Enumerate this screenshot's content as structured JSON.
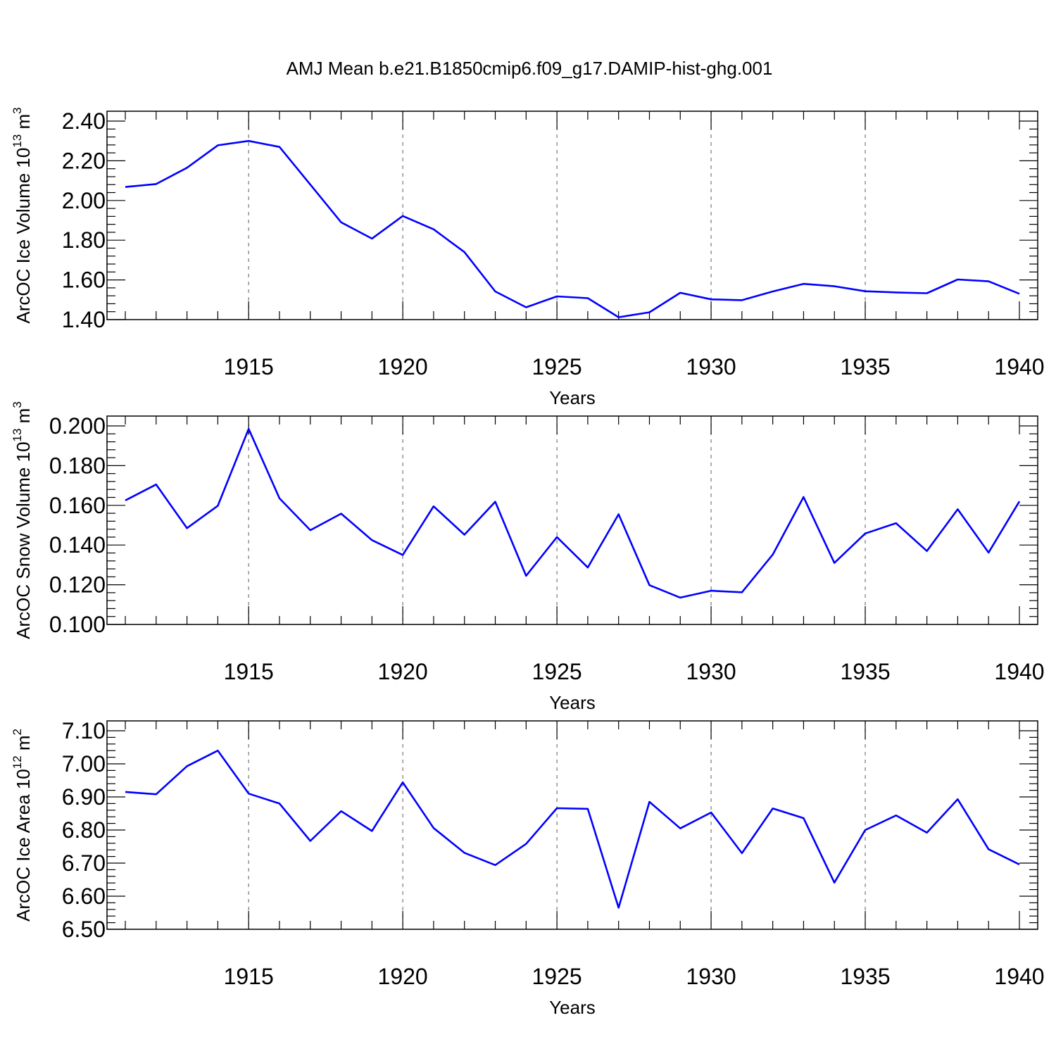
{
  "title": "AMJ Mean b.e21.B1850cmip6.f09_g17.DAMIP-hist-ghg.001",
  "colors": {
    "line": "#0000ff",
    "axis": "#000000",
    "grid": "#777777"
  },
  "chart_data": [
    {
      "type": "line",
      "ylabel": "ArcOC Ice Volume 10",
      "ylabel_sup": "13",
      "ylabel_unit": "m",
      "ylabel_unit_sup": "3",
      "xlabel": "Years",
      "xlim": [
        1911,
        1940
      ],
      "ylim": [
        1.4,
        2.4
      ],
      "y_ticks": [
        "1.40",
        "1.60",
        "1.80",
        "2.00",
        "2.20",
        "2.40"
      ],
      "x_ticks": [
        "1915",
        "1920",
        "1925",
        "1930",
        "1935",
        "1940"
      ],
      "x_grid": true,
      "x": [
        1911,
        1912,
        1913,
        1914,
        1915,
        1916,
        1917,
        1918,
        1919,
        1920,
        1921,
        1922,
        1923,
        1924,
        1925,
        1926,
        1927,
        1928,
        1929,
        1930,
        1931,
        1932,
        1933,
        1934,
        1935,
        1936,
        1937,
        1938,
        1939,
        1940
      ],
      "values": [
        2.068,
        2.083,
        2.165,
        2.278,
        2.3,
        2.27,
        2.08,
        1.89,
        1.808,
        1.922,
        1.855,
        1.74,
        1.542,
        1.462,
        1.517,
        1.508,
        1.412,
        1.437,
        1.535,
        1.502,
        1.498,
        1.542,
        1.58,
        1.568,
        1.543,
        1.537,
        1.533,
        1.602,
        1.593,
        1.53
      ]
    },
    {
      "type": "line",
      "ylabel": "ArcOC Snow Volume 10",
      "ylabel_sup": "13",
      "ylabel_unit": "m",
      "ylabel_unit_sup": "3",
      "xlabel": "Years",
      "xlim": [
        1911,
        1940
      ],
      "ylim": [
        0.1,
        0.2
      ],
      "y_ticks": [
        "0.100",
        "0.120",
        "0.140",
        "0.160",
        "0.180",
        "0.200"
      ],
      "x_ticks": [
        "1915",
        "1920",
        "1925",
        "1930",
        "1935",
        "1940"
      ],
      "x_grid": true,
      "x": [
        1911,
        1912,
        1913,
        1914,
        1915,
        1916,
        1917,
        1918,
        1919,
        1920,
        1921,
        1922,
        1923,
        1924,
        1925,
        1926,
        1927,
        1928,
        1929,
        1930,
        1931,
        1932,
        1933,
        1934,
        1935,
        1936,
        1937,
        1938,
        1939,
        1940
      ],
      "values": [
        0.1625,
        0.1705,
        0.1485,
        0.1598,
        0.1985,
        0.1635,
        0.1475,
        0.1558,
        0.1425,
        0.135,
        0.1595,
        0.1452,
        0.1618,
        0.1245,
        0.144,
        0.1287,
        0.1555,
        0.1198,
        0.1135,
        0.117,
        0.1162,
        0.1352,
        0.1642,
        0.131,
        0.1458,
        0.151,
        0.137,
        0.158,
        0.1362,
        0.162
      ]
    },
    {
      "type": "line",
      "ylabel": "ArcOC Ice Area 10",
      "ylabel_sup": "12",
      "ylabel_unit": "m",
      "ylabel_unit_sup": "2",
      "xlabel": "Years",
      "xlim": [
        1911,
        1940
      ],
      "ylim": [
        6.5,
        7.1
      ],
      "y_ticks": [
        "6.50",
        "6.60",
        "6.70",
        "6.80",
        "6.90",
        "7.00",
        "7.10"
      ],
      "x_ticks": [
        "1915",
        "1920",
        "1925",
        "1930",
        "1935",
        "1940"
      ],
      "x_grid": true,
      "x": [
        1911,
        1912,
        1913,
        1914,
        1915,
        1916,
        1917,
        1918,
        1919,
        1920,
        1921,
        1922,
        1923,
        1924,
        1925,
        1926,
        1927,
        1928,
        1929,
        1930,
        1931,
        1932,
        1933,
        1934,
        1935,
        1936,
        1937,
        1938,
        1939,
        1940
      ],
      "values": [
        6.915,
        6.908,
        6.993,
        7.04,
        6.91,
        6.88,
        6.767,
        6.857,
        6.797,
        6.944,
        6.806,
        6.731,
        6.694,
        6.758,
        6.866,
        6.864,
        6.565,
        6.885,
        6.805,
        6.853,
        6.73,
        6.865,
        6.836,
        6.641,
        6.8,
        6.844,
        6.792,
        6.893,
        6.742,
        6.696
      ]
    }
  ]
}
